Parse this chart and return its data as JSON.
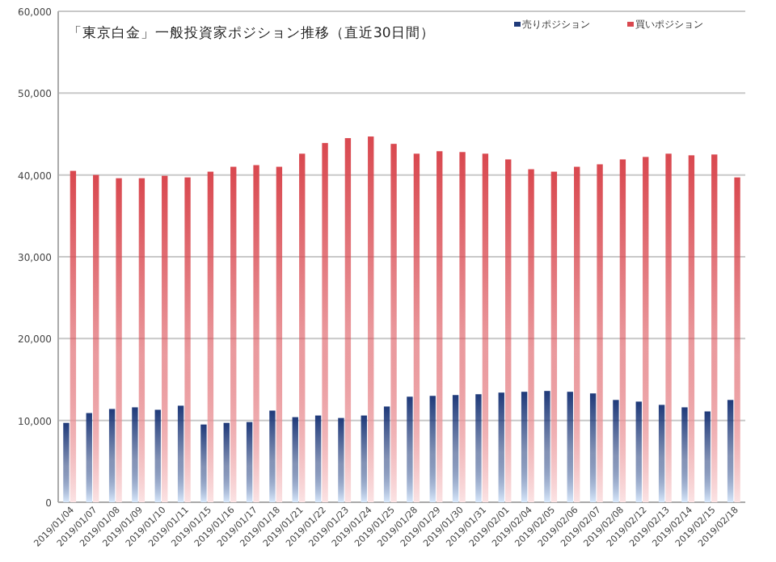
{
  "chart_data": {
    "type": "bar",
    "title": "「東京白金」一般投資家ポジション推移（直近30日間）",
    "categories": [
      "2019/01/04",
      "2019/01/07",
      "2019/01/08",
      "2019/01/09",
      "2019/01/10",
      "2019/01/11",
      "2019/01/15",
      "2019/01/16",
      "2019/01/17",
      "2019/01/18",
      "2019/01/21",
      "2019/01/22",
      "2019/01/23",
      "2019/01/24",
      "2019/01/25",
      "2019/01/28",
      "2019/01/29",
      "2019/01/30",
      "2019/01/31",
      "2019/02/01",
      "2019/02/04",
      "2019/02/05",
      "2019/02/06",
      "2019/02/07",
      "2019/02/08",
      "2019/02/12",
      "2019/02/13",
      "2019/02/14",
      "2019/02/15",
      "2019/02/18"
    ],
    "series": [
      {
        "name": "売りポジション",
        "color": "#1f3a7a",
        "values": [
          9700,
          10900,
          11400,
          11600,
          11300,
          11800,
          9500,
          9700,
          9800,
          11200,
          10400,
          10600,
          10300,
          10600,
          11700,
          12900,
          13000,
          13100,
          13200,
          13400,
          13500,
          13600,
          13500,
          13300,
          12500,
          12300,
          11900,
          11600,
          11100,
          12500
        ]
      },
      {
        "name": "買いポジション",
        "color": "#d9484f",
        "values": [
          40500,
          40000,
          39600,
          39600,
          39900,
          39700,
          40400,
          41000,
          41200,
          41000,
          42600,
          43900,
          44500,
          44700,
          43800,
          42600,
          42900,
          42800,
          42600,
          41900,
          40700,
          40400,
          41000,
          41300,
          41900,
          42200,
          42600,
          42400,
          42500,
          39700
        ]
      }
    ],
    "ylim": [
      0,
      60000
    ],
    "yticks": [
      0,
      {
        "value": 10000,
        "label": "10,000"
      },
      {
        "value": 20000,
        "label": "20,000"
      },
      {
        "value": 30000,
        "label": "30,000"
      },
      {
        "value": 40000,
        "label": "40,000"
      },
      {
        "value": 50000,
        "label": "50,000"
      },
      {
        "value": 60000,
        "label": "60,000"
      }
    ],
    "grid": "y",
    "legend": "top right"
  }
}
